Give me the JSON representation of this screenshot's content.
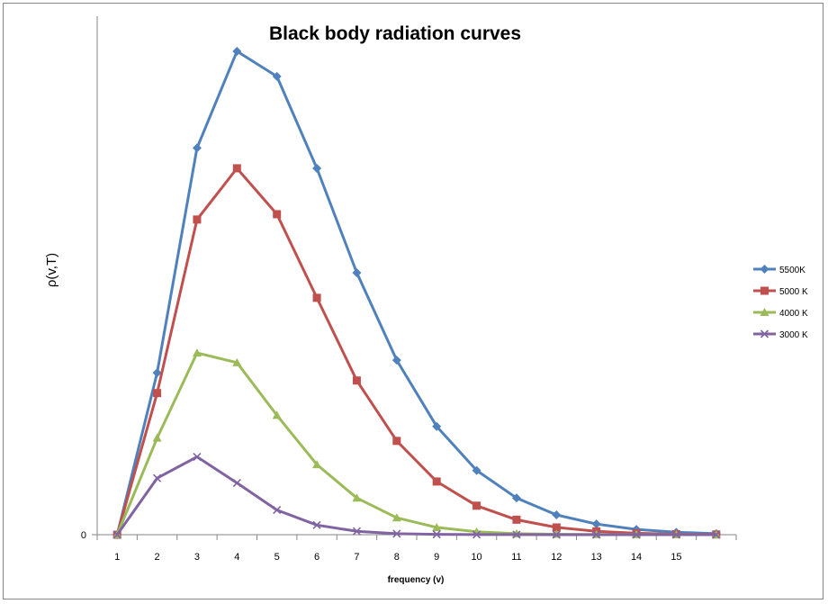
{
  "chart_data": {
    "type": "line",
    "title": "Black body radiation curves",
    "xlabel": "frequency (v)",
    "ylabel": "ρ(v,T)",
    "y_tick_labels": [
      "0"
    ],
    "x_tick_labels": [
      "1",
      "2",
      "3",
      "4",
      "5",
      "6",
      "7",
      "8",
      "9",
      "10",
      "11",
      "12",
      "13",
      "14",
      "15"
    ],
    "x": [
      1,
      2,
      3,
      4,
      5,
      6,
      7,
      8,
      9,
      10,
      11,
      12,
      13,
      14,
      15,
      16
    ],
    "ylim": [
      0,
      1.0
    ],
    "grid": false,
    "legend_position": "right",
    "series": [
      {
        "name": "5500K",
        "color": "#4F81BD",
        "marker": "diamond",
        "values": [
          0,
          0.335,
          0.8,
          1.0,
          0.948,
          0.758,
          0.542,
          0.361,
          0.224,
          0.133,
          0.076,
          0.041,
          0.022,
          0.011,
          0.005,
          0.002
        ]
      },
      {
        "name": "5000 K",
        "color": "#C0504D",
        "marker": "square",
        "values": [
          0,
          0.293,
          0.652,
          0.758,
          0.663,
          0.49,
          0.319,
          0.194,
          0.11,
          0.06,
          0.031,
          0.015,
          0.007,
          0.003,
          0.001,
          0.0005
        ]
      },
      {
        "name": "4000 K",
        "color": "#9BBB59",
        "marker": "triangle",
        "values": [
          0,
          0.2,
          0.376,
          0.356,
          0.247,
          0.145,
          0.076,
          0.035,
          0.015,
          0.006,
          0.002,
          0.001,
          0.0004,
          0.0002,
          0.0001,
          0
        ]
      },
      {
        "name": "3000 K",
        "color": "#8064A2",
        "marker": "x",
        "values": [
          0,
          0.117,
          0.161,
          0.107,
          0.051,
          0.02,
          0.007,
          0.002,
          0.0007,
          0.0002,
          0.0001,
          0,
          0,
          0,
          0,
          0
        ]
      }
    ]
  }
}
